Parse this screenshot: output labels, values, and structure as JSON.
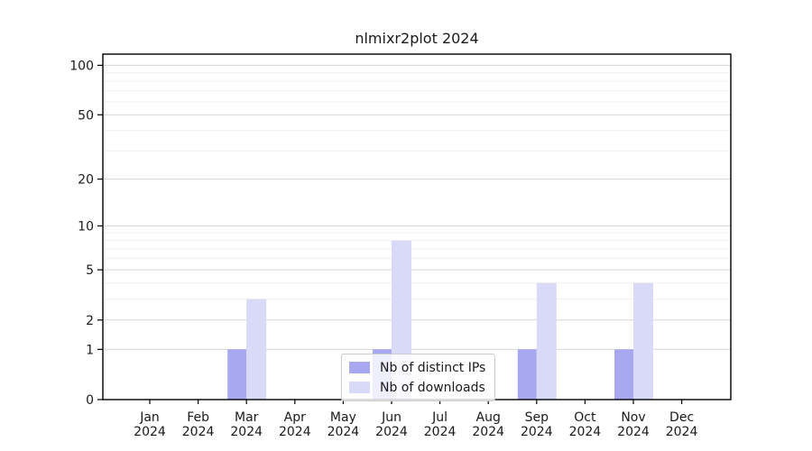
{
  "chart_data": {
    "type": "bar",
    "title": "nlmixr2plot 2024",
    "categories": [
      "Jan 2024",
      "Feb 2024",
      "Mar 2024",
      "Apr 2024",
      "May 2024",
      "Jun 2024",
      "Jul 2024",
      "Aug 2024",
      "Sep 2024",
      "Oct 2024",
      "Nov 2024",
      "Dec 2024"
    ],
    "series": [
      {
        "name": "Nb of distinct IPs",
        "color": "#a8a8f0",
        "values": [
          0,
          0,
          1,
          0,
          0,
          1,
          0,
          0,
          1,
          0,
          1,
          0
        ]
      },
      {
        "name": "Nb of downloads",
        "color": "#d9d9f8",
        "values": [
          0,
          0,
          3,
          0,
          0,
          8,
          0,
          0,
          4,
          0,
          4,
          0
        ]
      }
    ],
    "xlabel": "",
    "ylabel": "",
    "yscale": "log1p",
    "yticks": [
      0,
      1,
      2,
      5,
      10,
      20,
      50,
      100
    ],
    "yminorticks": [
      3,
      4,
      6,
      7,
      8,
      9,
      30,
      40,
      60,
      70,
      80,
      90
    ],
    "ylim": [
      0,
      115
    ],
    "grid": "horizontal",
    "legend_position": "bottom-center"
  },
  "colors": {
    "axis": "#000000",
    "tick_text": "#1a1a1a",
    "grid_major": "#d6d6d6",
    "grid_minor": "#f0f0f0",
    "background": "#ffffff"
  }
}
